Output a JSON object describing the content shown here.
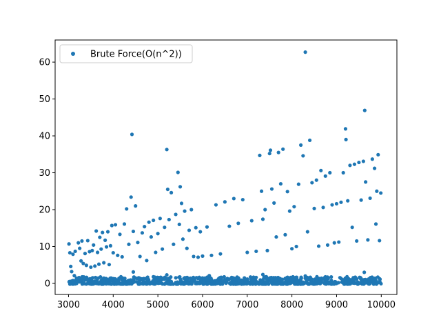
{
  "chart_data": {
    "type": "scatter",
    "title": "",
    "xlabel": "",
    "ylabel": "",
    "xlim": [
      2700,
      10350
    ],
    "ylim": [
      -3.0,
      66.0
    ],
    "xticks": [
      3000,
      4000,
      5000,
      6000,
      7000,
      8000,
      9000,
      10000
    ],
    "yticks": [
      0,
      10,
      20,
      30,
      40,
      50,
      60
    ],
    "grid": false,
    "legend_position": "top-left",
    "marker_color": "#1f77b4",
    "series": [
      {
        "name": "Brute Force(O(n^2))",
        "points": [
          [
            3010,
            10.7
          ],
          [
            3030,
            8.3
          ],
          [
            3050,
            4.6
          ],
          [
            3070,
            3.2
          ],
          [
            3100,
            7.9
          ],
          [
            3130,
            2.1
          ],
          [
            3150,
            8.7
          ],
          [
            3180,
            1.4
          ],
          [
            3220,
            11.0
          ],
          [
            3250,
            9.5
          ],
          [
            3280,
            6.1
          ],
          [
            3300,
            11.5
          ],
          [
            3330,
            5.4
          ],
          [
            3370,
            8.1
          ],
          [
            3400,
            4.9
          ],
          [
            3430,
            11.6
          ],
          [
            3470,
            8.6
          ],
          [
            3500,
            4.4
          ],
          [
            3530,
            8.9
          ],
          [
            3560,
            10.4
          ],
          [
            3590,
            4.7
          ],
          [
            3620,
            14.2
          ],
          [
            3650,
            8.4
          ],
          [
            3680,
            5.2
          ],
          [
            3700,
            12.5
          ],
          [
            3730,
            9.3
          ],
          [
            3760,
            13.8
          ],
          [
            3790,
            5.6
          ],
          [
            3820,
            11.7
          ],
          [
            3850,
            9.9
          ],
          [
            3880,
            14.0
          ],
          [
            3910,
            5.1
          ],
          [
            3940,
            10.2
          ],
          [
            3970,
            15.7
          ],
          [
            4000,
            8.3
          ],
          [
            4050,
            15.9
          ],
          [
            4100,
            7.6
          ],
          [
            4150,
            13.3
          ],
          [
            4200,
            7.2
          ],
          [
            4250,
            16.1
          ],
          [
            4300,
            20.2
          ],
          [
            4350,
            10.6
          ],
          [
            4400,
            23.4
          ],
          [
            4420,
            40.4
          ],
          [
            4450,
            14.1
          ],
          [
            4500,
            21.0
          ],
          [
            4550,
            11.1
          ],
          [
            4600,
            7.3
          ],
          [
            4650,
            13.7
          ],
          [
            4700,
            15.4
          ],
          [
            4750,
            6.2
          ],
          [
            4800,
            16.6
          ],
          [
            4850,
            12.6
          ],
          [
            4900,
            17.1
          ],
          [
            4950,
            8.4
          ],
          [
            5000,
            13.5
          ],
          [
            5050,
            17.6
          ],
          [
            5100,
            9.3
          ],
          [
            5150,
            15.2
          ],
          [
            5200,
            36.3
          ],
          [
            5220,
            25.5
          ],
          [
            5250,
            17.3
          ],
          [
            5300,
            24.6
          ],
          [
            5350,
            10.6
          ],
          [
            5400,
            18.7
          ],
          [
            5450,
            30.1
          ],
          [
            5480,
            16.0
          ],
          [
            5500,
            26.2
          ],
          [
            5530,
            21.7
          ],
          [
            5560,
            12.0
          ],
          [
            5600,
            19.6
          ],
          [
            5650,
            9.5
          ],
          [
            5700,
            14.4
          ],
          [
            5750,
            20.0
          ],
          [
            5800,
            7.3
          ],
          [
            5850,
            15.1
          ],
          [
            5900,
            7.1
          ],
          [
            5950,
            14.0
          ],
          [
            6000,
            7.4
          ],
          [
            6100,
            15.3
          ],
          [
            6200,
            7.6
          ],
          [
            6300,
            21.3
          ],
          [
            6400,
            8.0
          ],
          [
            6500,
            22.1
          ],
          [
            6600,
            15.5
          ],
          [
            6700,
            23.0
          ],
          [
            6800,
            16.3
          ],
          [
            6900,
            22.7
          ],
          [
            7000,
            8.4
          ],
          [
            7100,
            17.0
          ],
          [
            7200,
            8.7
          ],
          [
            7280,
            34.7
          ],
          [
            7320,
            25.0
          ],
          [
            7350,
            17.4
          ],
          [
            7400,
            20.0
          ],
          [
            7450,
            8.9
          ],
          [
            7500,
            35.2
          ],
          [
            7520,
            36.1
          ],
          [
            7550,
            25.6
          ],
          [
            7600,
            21.8
          ],
          [
            7650,
            12.6
          ],
          [
            7700,
            35.5
          ],
          [
            7750,
            27.0
          ],
          [
            7800,
            36.4
          ],
          [
            7850,
            13.2
          ],
          [
            7900,
            24.9
          ],
          [
            7950,
            19.6
          ],
          [
            8000,
            9.4
          ],
          [
            8050,
            20.8
          ],
          [
            8100,
            10.0
          ],
          [
            8150,
            26.9
          ],
          [
            8200,
            37.5
          ],
          [
            8250,
            34.6
          ],
          [
            8300,
            62.7
          ],
          [
            8350,
            14.0
          ],
          [
            8400,
            38.8
          ],
          [
            8450,
            27.3
          ],
          [
            8500,
            20.3
          ],
          [
            8550,
            28.0
          ],
          [
            8600,
            10.1
          ],
          [
            8650,
            30.6
          ],
          [
            8700,
            20.6
          ],
          [
            8750,
            29.1
          ],
          [
            8800,
            10.4
          ],
          [
            8850,
            30.0
          ],
          [
            8900,
            21.3
          ],
          [
            8950,
            11.0
          ],
          [
            9000,
            21.6
          ],
          [
            9050,
            11.2
          ],
          [
            9100,
            22.0
          ],
          [
            9150,
            30.0
          ],
          [
            9200,
            41.9
          ],
          [
            9210,
            39.0
          ],
          [
            9250,
            22.4
          ],
          [
            9300,
            32.0
          ],
          [
            9350,
            15.2
          ],
          [
            9400,
            32.3
          ],
          [
            9450,
            11.5
          ],
          [
            9500,
            32.8
          ],
          [
            9550,
            22.6
          ],
          [
            9600,
            33.1
          ],
          [
            9630,
            46.9
          ],
          [
            9650,
            27.5
          ],
          [
            9700,
            11.8
          ],
          [
            9750,
            23.1
          ],
          [
            9800,
            33.7
          ],
          [
            9850,
            31.2
          ],
          [
            9880,
            16.1
          ],
          [
            9900,
            25.0
          ],
          [
            9930,
            34.9
          ],
          [
            9960,
            11.6
          ],
          [
            9990,
            24.5
          ]
        ]
      }
    ],
    "dense_band": {
      "x_range": [
        3000,
        10000
      ],
      "y_range": [
        -0.2,
        1.8
      ],
      "outliers": [
        [
          4450,
          3.1
        ],
        [
          5200,
          2.3
        ],
        [
          6150,
          2.1
        ],
        [
          7350,
          2.4
        ],
        [
          8300,
          2.0
        ],
        [
          9620,
          3.0
        ]
      ]
    }
  }
}
